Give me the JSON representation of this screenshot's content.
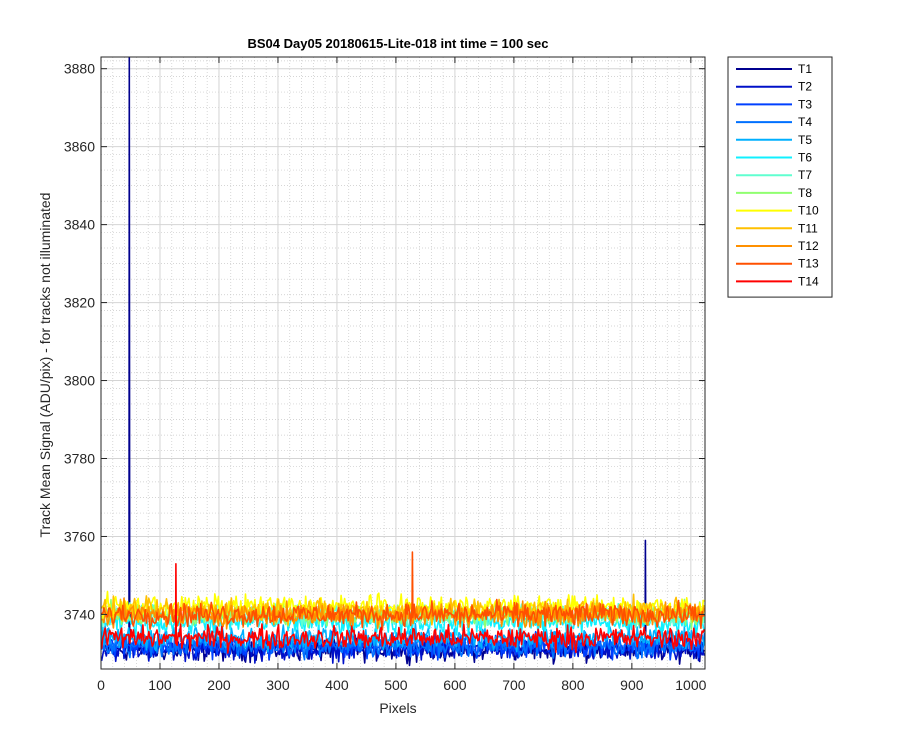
{
  "chart_data": {
    "type": "line",
    "title": "BS04 Day05 20180615-Lite-018 int time = 100 sec",
    "xlabel": "Pixels",
    "ylabel": "Track Mean Signal (ADU/pix) - for tracks not illuminated",
    "xlim": [
      0,
      1024
    ],
    "ylim": [
      3726,
      3883
    ],
    "xticks": [
      0,
      100,
      200,
      300,
      400,
      500,
      600,
      700,
      800,
      900,
      1000
    ],
    "yticks": [
      3740,
      3760,
      3780,
      3800,
      3820,
      3840,
      3860,
      3880
    ],
    "grid": true,
    "minor_grid": true,
    "legend_position": "outside-right-top",
    "series": [
      {
        "name": "T1",
        "color": "#00008f",
        "baseline": 3731,
        "noise": 2.5,
        "spikes": [
          [
            48,
            3883
          ],
          [
            923,
            3759
          ]
        ]
      },
      {
        "name": "T2",
        "color": "#0010c8",
        "baseline": 3731,
        "noise": 2.5,
        "spikes": []
      },
      {
        "name": "T3",
        "color": "#0040ff",
        "baseline": 3732,
        "noise": 2.5,
        "spikes": []
      },
      {
        "name": "T4",
        "color": "#0070ff",
        "baseline": 3732,
        "noise": 2.5,
        "spikes": []
      },
      {
        "name": "T5",
        "color": "#00b0ff",
        "baseline": 3734,
        "noise": 2.5,
        "spikes": []
      },
      {
        "name": "T6",
        "color": "#10f0ff",
        "baseline": 3738,
        "noise": 2.5,
        "spikes": []
      },
      {
        "name": "T7",
        "color": "#60ffd0",
        "baseline": 3740,
        "noise": 2.5,
        "spikes": []
      },
      {
        "name": "T8",
        "color": "#90ff70",
        "baseline": 3740,
        "noise": 2.5,
        "spikes": []
      },
      {
        "name": "T10",
        "color": "#ffff00",
        "baseline": 3742,
        "noise": 2.5,
        "spikes": []
      },
      {
        "name": "T11",
        "color": "#ffc000",
        "baseline": 3741,
        "noise": 2.5,
        "spikes": []
      },
      {
        "name": "T12",
        "color": "#ff9000",
        "baseline": 3740,
        "noise": 2.5,
        "spikes": []
      },
      {
        "name": "T13",
        "color": "#ff5000",
        "baseline": 3740,
        "noise": 2.5,
        "spikes": [
          [
            528,
            3756
          ]
        ]
      },
      {
        "name": "T14",
        "color": "#ff0000",
        "baseline": 3734,
        "noise": 2.5,
        "spikes": [
          [
            127,
            3753
          ]
        ]
      }
    ]
  }
}
